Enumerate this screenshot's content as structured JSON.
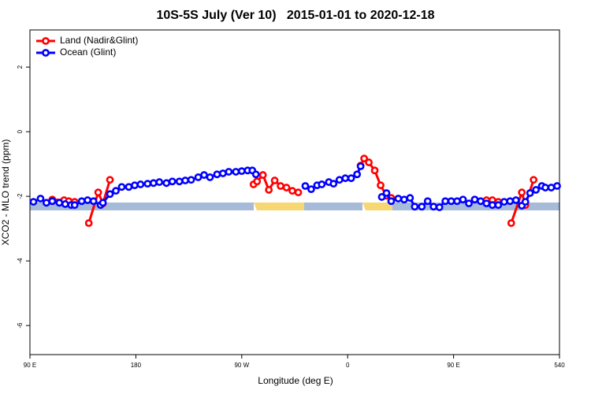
{
  "chart_data": {
    "type": "line",
    "title": "10S-5S July (Ver 10)   2015-01-01 to 2020-12-18",
    "x_label": "Longitude (deg E)",
    "y_label": "XCO2 - MLO trend (ppm)",
    "xlim": [
      90,
      540
    ],
    "ylim": [
      -6.9,
      3.15
    ],
    "xticks": [
      {
        "value": 90,
        "label": "90 E"
      },
      180,
      {
        "value": 270,
        "label": "90 W"
      },
      {
        "value": 360,
        "label": "0"
      },
      {
        "value": 450,
        "label": "90 E"
      },
      540
    ],
    "yticks": [
      2,
      0,
      -2,
      -4,
      -6
    ],
    "grid": false,
    "legend": "top-left",
    "series": [
      {
        "name": "Land (Nadir&Glint)",
        "color": "#ff0000",
        "x": [
          109,
          119,
          123,
          128,
          134,
          140,
          148,
          152,
          158,
          230,
          280,
          283,
          288,
          293,
          298,
          303,
          308,
          313,
          318,
          345,
          371,
          374,
          378,
          383,
          388,
          393,
          397,
          430,
          468,
          478,
          483,
          488,
          494,
          499,
          508,
          511,
          518
        ],
        "values": [
          -2.1,
          -2.12,
          -2.15,
          -2.17,
          null,
          -2.83,
          -1.88,
          -2.22,
          -1.49,
          null,
          -1.63,
          -1.54,
          -1.34,
          -1.8,
          -1.51,
          -1.68,
          -1.73,
          -1.83,
          -1.88,
          null,
          -1.05,
          -0.83,
          -0.95,
          -1.2,
          -1.66,
          -1.98,
          -2.05,
          null,
          -2.1,
          -2.12,
          -2.12,
          -2.17,
          null,
          -2.83,
          -1.88,
          -2.27,
          -1.49
        ]
      },
      {
        "name": "Ocean (Glint)",
        "color": "#0000ff",
        "x": [
          93,
          99,
          104,
          109,
          115,
          120,
          125,
          128,
          134,
          139,
          144,
          150,
          152,
          158,
          163,
          168,
          174,
          179,
          184,
          190,
          195,
          200,
          206,
          211,
          217,
          222,
          227,
          233,
          238,
          243,
          249,
          254,
          259,
          265,
          270,
          275,
          279,
          282,
          310,
          324,
          329,
          334,
          338,
          344,
          348,
          353,
          358,
          363,
          368,
          371,
          380,
          389,
          393,
          397,
          403,
          408,
          413,
          417,
          423,
          428,
          433,
          438,
          443,
          448,
          453,
          458,
          463,
          468,
          473,
          478,
          483,
          488,
          493,
          498,
          503,
          508,
          511,
          515,
          520,
          525,
          528,
          533,
          538
        ],
        "values": [
          -2.17,
          -2.07,
          -2.2,
          -2.15,
          -2.2,
          -2.24,
          -2.27,
          -2.27,
          -2.15,
          -2.12,
          -2.15,
          -2.27,
          -2.2,
          -1.93,
          -1.83,
          -1.71,
          -1.71,
          -1.66,
          -1.63,
          -1.61,
          -1.59,
          -1.56,
          -1.59,
          -1.54,
          -1.54,
          -1.51,
          -1.49,
          -1.41,
          -1.34,
          -1.41,
          -1.32,
          -1.29,
          -1.24,
          -1.24,
          -1.22,
          -1.2,
          -1.2,
          -1.32,
          null,
          -1.68,
          -1.78,
          -1.66,
          -1.63,
          -1.56,
          -1.61,
          -1.49,
          -1.44,
          -1.44,
          -1.32,
          -1.07,
          null,
          -2.02,
          -1.9,
          -2.15,
          -2.07,
          -2.1,
          -2.05,
          -2.32,
          -2.32,
          -2.15,
          -2.32,
          -2.34,
          -2.15,
          -2.15,
          -2.15,
          -2.1,
          -2.22,
          -2.1,
          -2.15,
          -2.22,
          -2.27,
          -2.27,
          -2.17,
          -2.15,
          -2.12,
          -2.29,
          -2.17,
          -1.9,
          -1.8,
          -1.68,
          -1.73,
          -1.73,
          -1.68
        ]
      }
    ]
  }
}
